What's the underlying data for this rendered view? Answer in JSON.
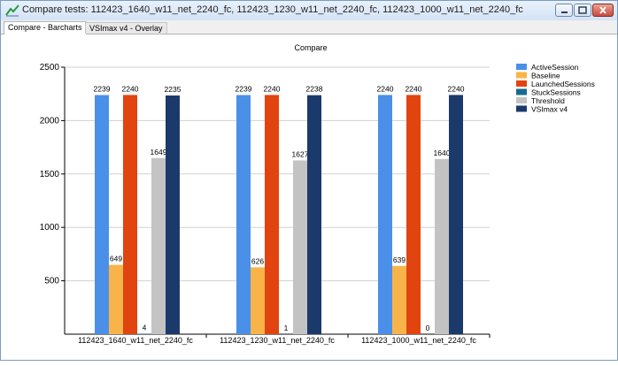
{
  "window": {
    "title": "Compare tests: 112423_1640_w11_net_2240_fc, 112423_1230_w11_net_2240_fc, 112423_1000_w11_net_2240_fc"
  },
  "tabs": [
    {
      "label": "Compare - Barcharts",
      "active": true
    },
    {
      "label": "VSImax v4 - Overlay",
      "active": false
    }
  ],
  "chart_data": {
    "type": "bar",
    "title": "Compare",
    "xlabel": "",
    "ylabel": "",
    "ylim": [
      0,
      2500
    ],
    "yticks": [
      500,
      1000,
      1500,
      2000,
      2500
    ],
    "grid": true,
    "legend_position": "right",
    "categories": [
      "112423_1640_w11_net_2240_fc",
      "112423_1230_w11_net_2240_fc",
      "112423_1000_w11_net_2240_fc"
    ],
    "series": [
      {
        "name": "ActiveSession",
        "color": "#4a90e8",
        "values": [
          2239,
          2239,
          2240
        ]
      },
      {
        "name": "Baseline",
        "color": "#f9b449",
        "values": [
          649,
          626,
          639
        ]
      },
      {
        "name": "LaunchedSessions",
        "color": "#e2440f",
        "values": [
          2240,
          2240,
          2240
        ]
      },
      {
        "name": "StuckSessions",
        "color": "#1a6a8d",
        "values": [
          4,
          1,
          0
        ]
      },
      {
        "name": "Threshold",
        "color": "#c3c3c3",
        "values": [
          1649,
          1627,
          1640
        ]
      },
      {
        "name": "VSImax v4",
        "color": "#1b3a6b",
        "values": [
          2235,
          2238,
          2240
        ]
      }
    ]
  }
}
